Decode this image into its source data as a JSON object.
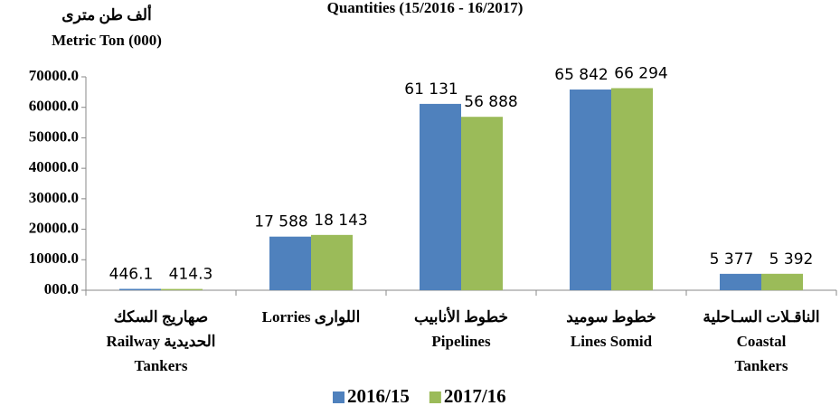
{
  "chart_data": {
    "type": "bar",
    "title": "Quantities (15/2016 - 16/2017)",
    "y_label": [
      "ألف طن مترى",
      "Metric Ton (000)"
    ],
    "categories": [
      [
        "صهاريج السكك",
        "Railway الحديدية",
        "Tankers"
      ],
      [
        "Lorries اللوارى"
      ],
      [
        "خطوط الأنابيب",
        "Pipelines"
      ],
      [
        "خطوط سوميد",
        "Lines Somid"
      ],
      [
        "الناقـلات السـاحلية",
        "Coastal",
        "Tankers"
      ]
    ],
    "series": [
      {
        "name": "2016/15",
        "color": "#4f81bd",
        "values": [
          446.1,
          17588,
          61131,
          65842,
          5377
        ],
        "value_labels": [
          "446.1",
          "17 588",
          "61 131",
          "65 842",
          "5 377"
        ]
      },
      {
        "name": "2017/16",
        "color": "#9bbb59",
        "values": [
          414.3,
          18143,
          56888,
          66294,
          5392
        ],
        "value_labels": [
          "414.3",
          "18 143",
          "56 888",
          "66 294",
          "5 392"
        ]
      }
    ],
    "ylim": [
      0,
      70000
    ],
    "yticks": [
      {
        "value": 0,
        "label": "000.0"
      },
      {
        "value": 10000,
        "label": "10000.0"
      },
      {
        "value": 20000,
        "label": "20000.0"
      },
      {
        "value": 30000,
        "label": "30000.0"
      },
      {
        "value": 40000,
        "label": "40000.0"
      },
      {
        "value": 50000,
        "label": "50000.0"
      },
      {
        "value": 60000,
        "label": "60000.0"
      },
      {
        "value": 70000,
        "label": "70000.0"
      }
    ],
    "legend": "bottom"
  }
}
